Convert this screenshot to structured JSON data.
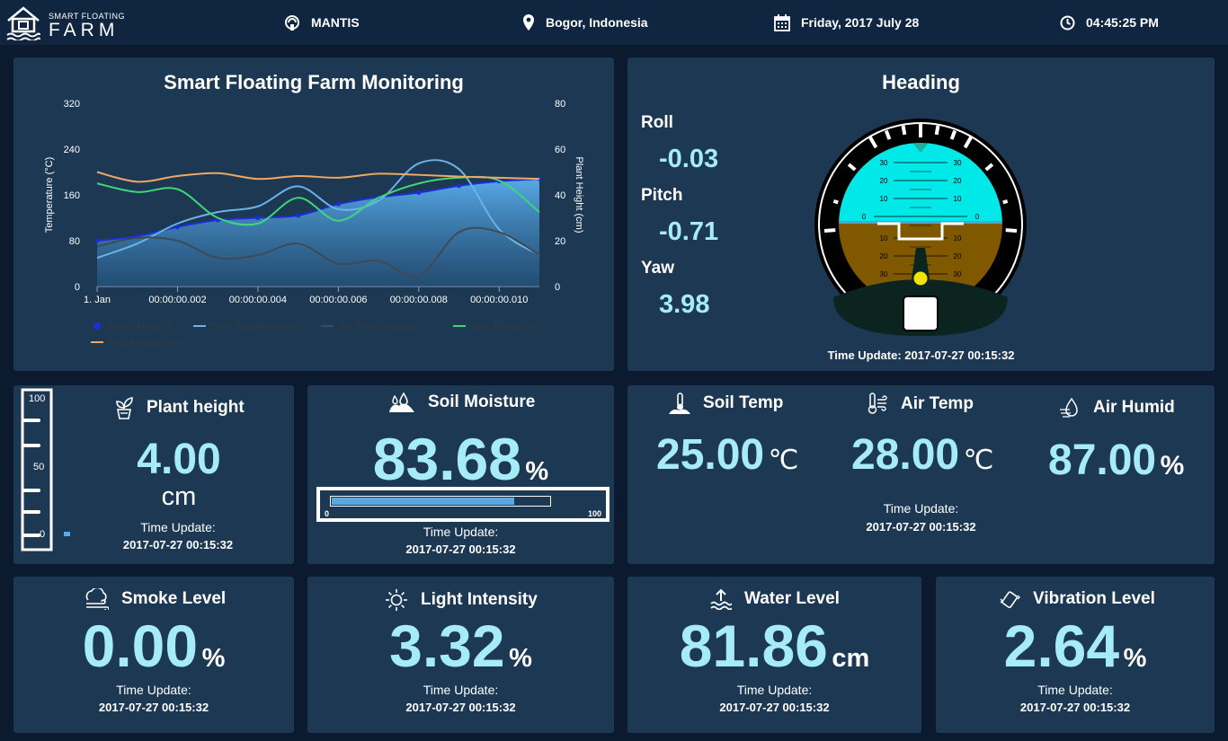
{
  "header": {
    "brand_small": "SMART FLOATING",
    "brand_big": "FARM",
    "device": "MANTIS",
    "location": "Bogor, Indonesia",
    "date": "Friday, 2017 July 28",
    "time": "04:45:25 PM"
  },
  "monitor": {
    "title": "Smart Floating Farm Monitoring"
  },
  "chart_data": {
    "type": "line",
    "title": "Smart Floating Farm Monitoring",
    "ylabel": "Temperature (°C)",
    "y2label": "Plant Height (cm)",
    "ylim": [
      0,
      320
    ],
    "y2lim": [
      0,
      80
    ],
    "yticks": [
      "0",
      "80",
      "160",
      "240",
      "320"
    ],
    "y2ticks": [
      "0",
      "20",
      "40",
      "60",
      "80"
    ],
    "xticks": [
      "1. Jan",
      "00:00:00.002",
      "00:00:00.004",
      "00:00:00.006",
      "00:00:00.008",
      "00:00:00.010"
    ],
    "x": [
      0,
      1,
      2,
      3,
      4,
      5,
      6,
      7,
      8,
      9,
      10,
      11
    ],
    "legend_position": "bottom-left",
    "series": [
      {
        "name": "Plant Height",
        "axis": "right",
        "chart": "area",
        "color": "#4f9ee6",
        "values": [
          20,
          22,
          26,
          29,
          30,
          31,
          36,
          39,
          41,
          44,
          46,
          47
        ]
      },
      {
        "name": "Soil Temperature",
        "axis": "left",
        "chart": "line",
        "color": "#6ab3e8",
        "values": [
          50,
          75,
          110,
          130,
          140,
          175,
          135,
          150,
          215,
          205,
          100,
          55
        ]
      },
      {
        "name": "Air Temperature",
        "axis": "left",
        "chart": "line",
        "color": "#404a52",
        "values": [
          70,
          85,
          80,
          50,
          55,
          75,
          40,
          45,
          18,
          95,
          95,
          55
        ]
      },
      {
        "name": "Soil Moisture",
        "axis": "left",
        "chart": "line",
        "color": "#3fd67a",
        "values": [
          180,
          165,
          170,
          120,
          110,
          155,
          115,
          155,
          180,
          190,
          185,
          130
        ]
      },
      {
        "name": "Light Intensity",
        "axis": "left",
        "chart": "line",
        "color": "#f0a864",
        "values": [
          200,
          183,
          193,
          198,
          188,
          193,
          190,
          197,
          195,
          192,
          190,
          188
        ]
      }
    ]
  },
  "heading": {
    "title": "Heading",
    "roll_label": "Roll",
    "roll": "-0.03",
    "pitch_label": "Pitch",
    "pitch": "-0.71",
    "yaw_label": "Yaw",
    "yaw": "3.98",
    "time_update": "Time Update: 2017-07-27 00:15:32",
    "pitch_marks": [
      "30",
      "20",
      "10",
      "0",
      "10",
      "20",
      "30"
    ]
  },
  "plant": {
    "title": "Plant height",
    "value": "4.00",
    "unit": "cm",
    "level_fraction": 0.04,
    "ruler_ticks": [
      "100",
      "50",
      "0"
    ],
    "time_label": "Time Update:",
    "time_value": "2017-07-27 00:15:32"
  },
  "soil_moisture": {
    "title": "Soil Moisture",
    "value": "83.68",
    "unit": "%",
    "bar_fraction": 0.8368,
    "bar_min": "0",
    "bar_max": "100",
    "time_label": "Time Update:",
    "time_value": "2017-07-27 00:15:32"
  },
  "env": {
    "soil_temp_title": "Soil Temp",
    "soil_temp_value": "25.00",
    "soil_temp_unit": "℃",
    "air_temp_title": "Air Temp",
    "air_temp_value": "28.00",
    "air_temp_unit": "℃",
    "air_humid_title": "Air Humid",
    "air_humid_value": "87.00",
    "air_humid_unit": "%",
    "time_label": "Time Update:",
    "time_value": "2017-07-27 00:15:32"
  },
  "smoke": {
    "title": "Smoke Level",
    "value": "0.00",
    "unit": "%",
    "time_label": "Time Update:",
    "time_value": "2017-07-27 00:15:32"
  },
  "light": {
    "title": "Light Intensity",
    "value": "3.32",
    "unit": "%",
    "time_label": "Time Update:",
    "time_value": "2017-07-27 00:15:32"
  },
  "water": {
    "title": "Water Level",
    "value": "81.86",
    "unit": "cm",
    "time_label": "Time Update:",
    "time_value": "2017-07-27 00:15:32"
  },
  "vibration": {
    "title": "Vibration Level",
    "value": "2.64",
    "unit": "%",
    "time_label": "Time Update:",
    "time_value": "2017-07-27 00:15:32"
  },
  "icons": {
    "brand": "house-wave-icon",
    "device": "signal-head-icon",
    "location": "map-pin-icon",
    "date": "calendar-icon",
    "time": "clock-icon",
    "plant": "plant-pot-icon",
    "soil_moisture": "soil-drop-icon",
    "soil_temp": "thermometer-icon",
    "air_temp": "wind-thermometer-icon",
    "air_humid": "humidity-icon",
    "smoke": "smoke-icon",
    "light": "sun-icon",
    "water": "water-level-icon",
    "vibration": "vibration-icon"
  }
}
